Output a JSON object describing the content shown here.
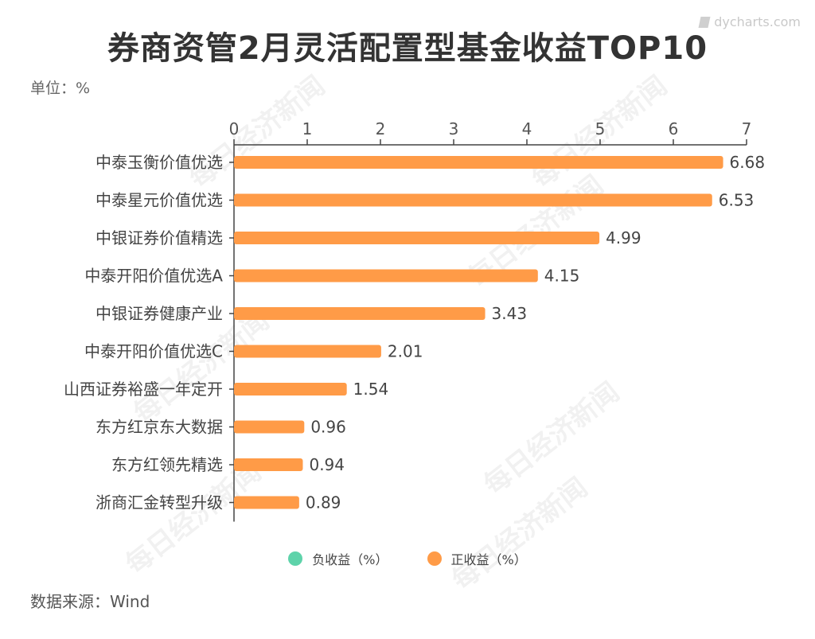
{
  "header": {
    "title": "券商资管2月灵活配置型基金收益TOP10",
    "unit": "单位：%",
    "brand": "dycharts.com"
  },
  "footer": {
    "source": "数据来源：Wind"
  },
  "watermark": {
    "text": "每日经济新闻"
  },
  "legend": {
    "items": [
      {
        "label": "负收益（%）",
        "color": "#5ed3aa"
      },
      {
        "label": "正收益（%）",
        "color": "#ff9b47"
      }
    ]
  },
  "chart_data": {
    "type": "bar",
    "orientation": "horizontal",
    "title": "券商资管2月灵活配置型基金收益TOP10",
    "categories": [
      "中泰玉衡价值优选",
      "中泰星元价值优选",
      "中银证券价值精选",
      "中泰开阳价值优选A",
      "中银证券健康产业",
      "中泰开阳价值优选C",
      "山西证券裕盛一年定开",
      "东方红京东大数据",
      "东方红领先精选",
      "浙商汇金转型升级"
    ],
    "series": [
      {
        "name": "正收益（%）",
        "color": "#ff9b47",
        "values": [
          6.68,
          6.53,
          4.99,
          4.15,
          3.43,
          2.01,
          1.54,
          0.96,
          0.94,
          0.89
        ]
      }
    ],
    "value_labels": [
      "6.68",
      "6.53",
      "4.99",
      "4.15",
      "3.43",
      "2.01",
      "1.54",
      "0.96",
      "0.94",
      "0.89"
    ],
    "xlim": [
      0,
      7
    ],
    "xticks": [
      "0",
      "1",
      "2",
      "3",
      "4",
      "5",
      "6",
      "7"
    ],
    "axis_position": "top",
    "legend_position": "bottom",
    "grid": false
  }
}
